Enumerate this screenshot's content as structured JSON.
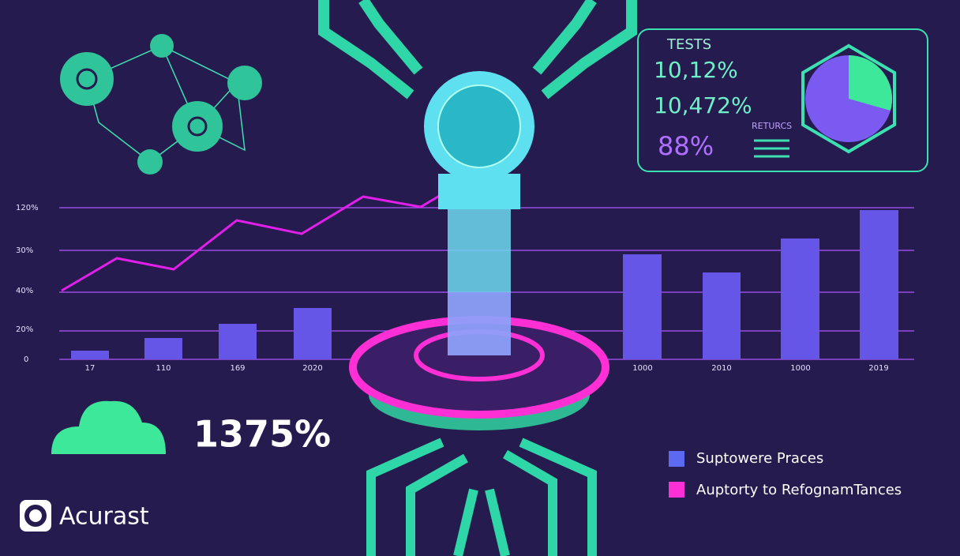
{
  "panel": {
    "title": "TESTS",
    "stats": [
      "10,12%",
      "10,472%",
      "88%"
    ],
    "label": "RETURCS"
  },
  "axis": {
    "labels": [
      "120%",
      "30%",
      "40%",
      "20%",
      "0"
    ],
    "categories": [
      "17",
      "110",
      "169",
      "2020",
      "1000",
      "2010",
      "1000",
      "2019"
    ]
  },
  "big_stat": "1375%",
  "legend": [
    {
      "label": "Suptowere Praces"
    },
    {
      "label": "Auptorty to RefognamTances"
    }
  ],
  "brand": "Acurast"
}
